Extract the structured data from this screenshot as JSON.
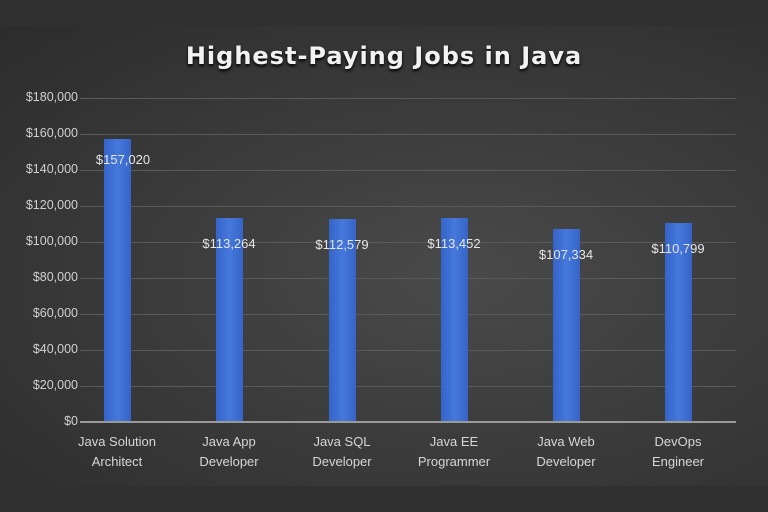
{
  "chart_data": {
    "type": "bar",
    "title": "Highest-Paying  Jobs  in  Java",
    "categories": [
      "Java Solution\nArchitect",
      "Java App\nDeveloper",
      "Java SQL\nDeveloper",
      "Java EE\nProgrammer",
      "Java Web\nDeveloper",
      "DevOps\nEngineer"
    ],
    "values": [
      157020,
      113264,
      112579,
      113452,
      107334,
      110799
    ],
    "data_labels": [
      "$157,020",
      "$113,264",
      "$112,579",
      "$113,452",
      "$107,334",
      "$110,799"
    ],
    "xlabel": "",
    "ylabel": "",
    "ylim": [
      0,
      180000
    ],
    "yticks": [
      "$0",
      "$20,000",
      "$40,000",
      "$60,000",
      "$80,000",
      "$100,000",
      "$120,000",
      "$140,000",
      "$160,000",
      "$180,000"
    ],
    "grid": true,
    "legend": "none",
    "bar_color": "#4472C4",
    "background_color": "#3a3a3a"
  }
}
